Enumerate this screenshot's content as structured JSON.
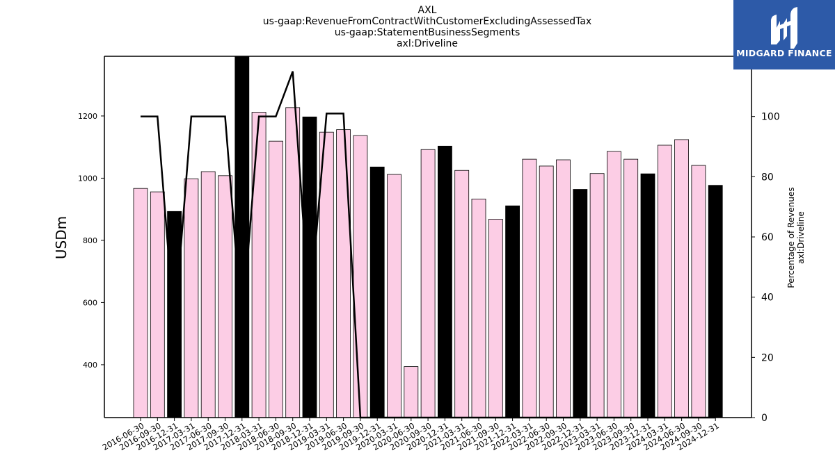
{
  "title": {
    "line1": "AXL",
    "line2": "us-gaap:RevenueFromContractWithCustomerExcludingAssessedTax",
    "line3": "us-gaap:StatementBusinessSegments",
    "line4": "axl:Driveline"
  },
  "logo": {
    "text": "MIDGARD FINANCE",
    "bg_color": "#2d5aa8"
  },
  "colors": {
    "quarter_bar": "#fccde5",
    "year_end_bar": "#000000",
    "line": "#000000"
  },
  "chart_data": {
    "type": "bar",
    "categories": [
      "2016-06-30",
      "2016-09-30",
      "2016-12-31",
      "2017-03-31",
      "2017-06-30",
      "2017-09-30",
      "2017-12-31",
      "2018-03-31",
      "2018-06-30",
      "2018-09-30",
      "2018-12-31",
      "2019-03-31",
      "2019-06-30",
      "2019-09-30",
      "2019-12-31",
      "2020-03-31",
      "2020-06-30",
      "2020-09-30",
      "2020-12-31",
      "2021-03-31",
      "2021-06-30",
      "2021-09-30",
      "2021-12-31",
      "2022-03-31",
      "2022-06-30",
      "2022-09-30",
      "2022-12-31",
      "2023-03-31",
      "2023-06-30",
      "2023-09-30",
      "2023-12-31",
      "2024-03-31",
      "2024-06-30",
      "2024-09-30",
      "2024-12-31"
    ],
    "series": [
      {
        "axis": "left",
        "values": [
          967,
          956,
          893,
          998,
          1021,
          1008,
          1392,
          1212,
          1119,
          1227,
          1197,
          1148,
          1156,
          1137,
          1036,
          1012,
          394,
          1092,
          1103,
          1025,
          933,
          868,
          911,
          1061,
          1039,
          1059,
          964,
          1015,
          1086,
          1061,
          1014,
          1106,
          1124,
          1041,
          977
        ],
        "highlight": [
          false,
          false,
          true,
          false,
          false,
          false,
          true,
          false,
          false,
          false,
          true,
          false,
          false,
          false,
          true,
          false,
          false,
          false,
          true,
          false,
          false,
          false,
          true,
          false,
          false,
          false,
          true,
          false,
          false,
          false,
          true,
          false,
          false,
          false,
          true
        ]
      },
      {
        "axis": "right",
        "type": "line",
        "values": [
          100,
          100,
          30,
          100,
          100,
          100,
          30,
          100,
          100,
          115,
          35,
          101,
          101,
          0,
          0,
          0,
          0,
          0,
          0,
          0,
          0,
          0,
          0,
          0,
          0,
          0,
          0,
          0,
          0,
          0,
          0,
          0,
          0,
          0,
          0
        ]
      }
    ],
    "xlabel": "",
    "ylabel": "USDm",
    "y2label_line1": "Percentage of Revenues",
    "y2label_line2": "axl:Driveline",
    "ylim": [
      230,
      1392
    ],
    "y2lim": [
      0,
      120
    ],
    "yticks": [
      400,
      600,
      800,
      1000,
      1200
    ],
    "y2ticks": [
      0,
      20,
      40,
      60,
      80,
      100
    ],
    "grid": false,
    "legend": "none"
  }
}
